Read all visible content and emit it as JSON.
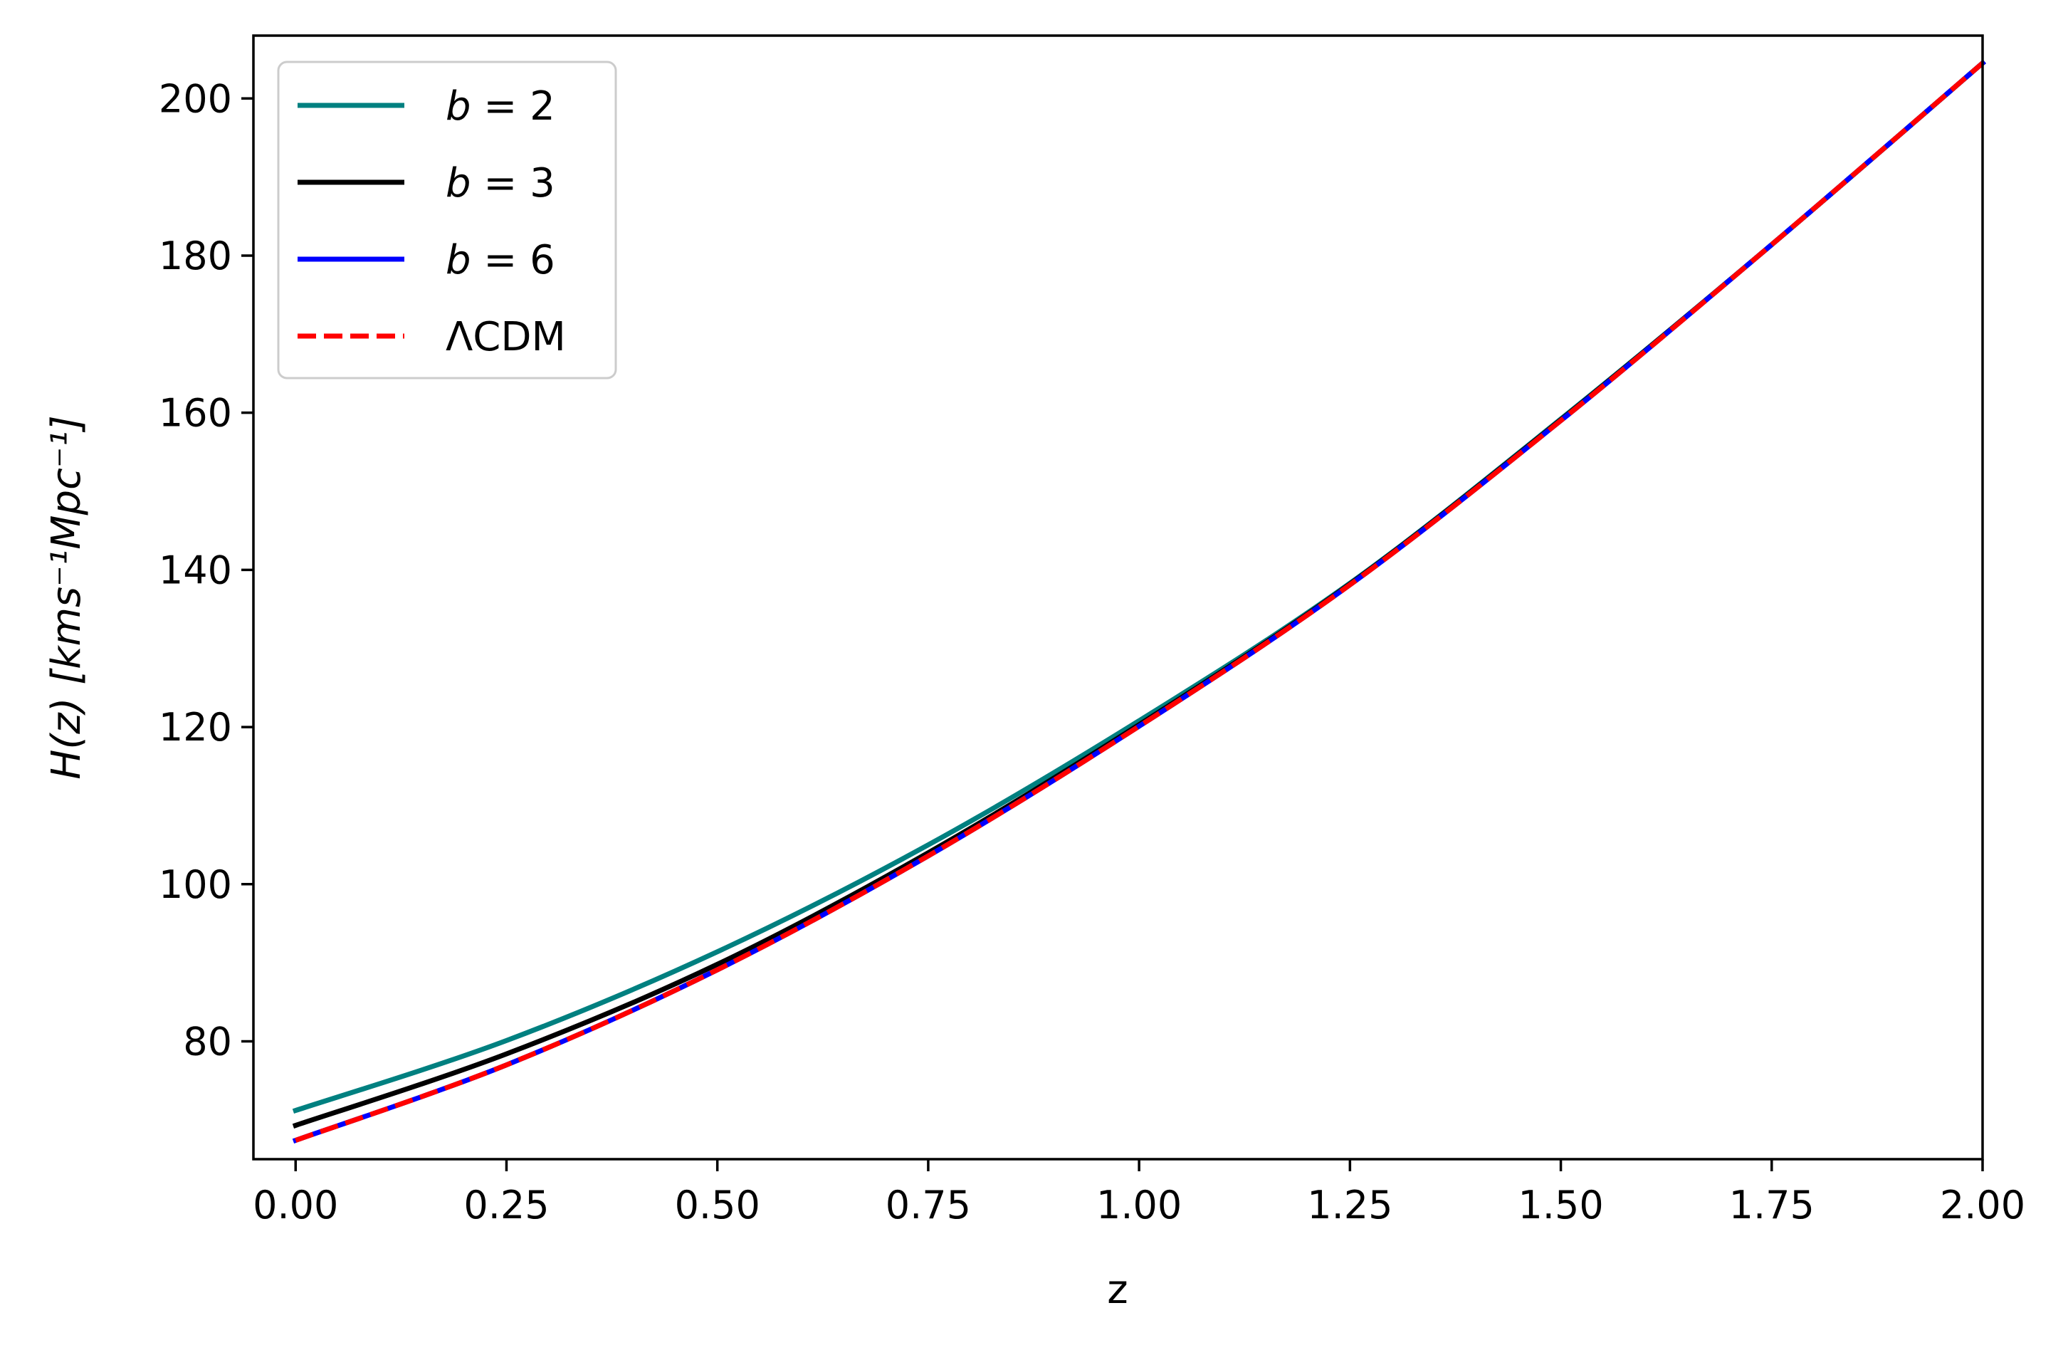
{
  "chart_data": {
    "type": "line",
    "xlabel": "z",
    "ylabel": "H(z) [kms⁻¹Mpc⁻¹]",
    "xlim": [
      -0.05,
      2.0
    ],
    "ylim": [
      65,
      208
    ],
    "xticks": [
      0.0,
      0.25,
      0.5,
      0.75,
      1.0,
      1.25,
      1.5,
      1.75,
      2.0
    ],
    "xtick_labels": [
      "0.00",
      "0.25",
      "0.50",
      "0.75",
      "1.00",
      "1.25",
      "1.50",
      "1.75",
      "2.00"
    ],
    "yticks": [
      80,
      100,
      120,
      140,
      160,
      180,
      200
    ],
    "ytick_labels": [
      "80",
      "100",
      "120",
      "140",
      "160",
      "180",
      "200"
    ],
    "grid": false,
    "legend_position": "top-left",
    "x": [
      0.0,
      0.25,
      0.5,
      0.75,
      1.0,
      1.25,
      1.5,
      1.75,
      2.0
    ],
    "series": [
      {
        "name": "b = 2",
        "color": "#008080",
        "style": "solid",
        "values": [
          71.2,
          80.1,
          91.4,
          105.0,
          120.8,
          138.3,
          159.2,
          181.4,
          204.5
        ]
      },
      {
        "name": "b = 3",
        "color": "#000000",
        "style": "solid",
        "values": [
          69.3,
          78.4,
          89.8,
          104.0,
          120.3,
          138.2,
          159.1,
          181.4,
          204.5
        ]
      },
      {
        "name": "b = 6",
        "color": "#0000ff",
        "style": "solid",
        "values": [
          67.4,
          77.0,
          89.1,
          103.6,
          120.1,
          138.1,
          159.0,
          181.4,
          204.5
        ]
      },
      {
        "name": "ΛCDM",
        "color": "#ff0000",
        "style": "dashed",
        "values": [
          67.4,
          77.0,
          89.1,
          103.6,
          120.1,
          138.1,
          159.0,
          181.4,
          204.5
        ]
      }
    ]
  }
}
